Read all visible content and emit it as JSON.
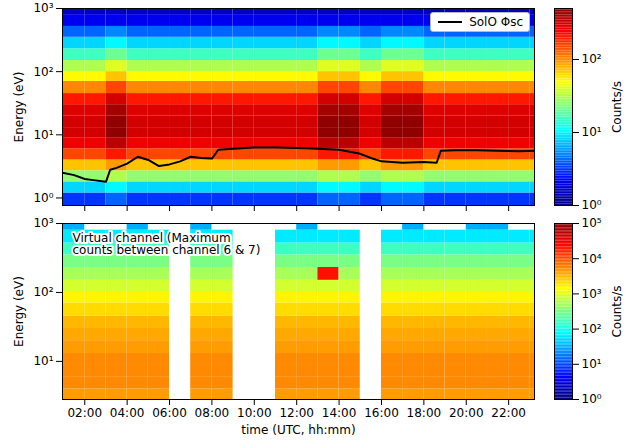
{
  "chart_data": [
    {
      "type": "heatmap",
      "ylabel": "Energy (eV)",
      "log": "y",
      "tick_labels": "y",
      "legend": "upper right",
      "xlim": [
        0.95,
        23.22
      ],
      "xticks": [
        2,
        4,
        6,
        8,
        10,
        12,
        14,
        16,
        18,
        20,
        22
      ],
      "ylim": [
        0.76,
        1000
      ],
      "yticks": [
        {
          "value": 1,
          "label": "10⁰"
        },
        {
          "value": 10,
          "label": "10¹"
        },
        {
          "value": 100,
          "label": "10²"
        },
        {
          "value": 1000,
          "label": "10³"
        }
      ],
      "x_bins": [
        0.95,
        2,
        3,
        4,
        5,
        6,
        7,
        8,
        9,
        10,
        11,
        12,
        13,
        14,
        15,
        16,
        17,
        18,
        19,
        20,
        21,
        22,
        23,
        23.22
      ],
      "y_bins": [
        0.76,
        1.2,
        1.8,
        2.7,
        4,
        6,
        9,
        13,
        20,
        30,
        45,
        70,
        100,
        150,
        230,
        350,
        520,
        800,
        1000
      ],
      "values": [
        [
          3,
          3,
          4,
          3,
          3,
          3,
          3,
          3,
          3,
          3,
          3,
          3,
          4,
          4,
          3,
          4,
          4,
          3,
          3,
          3,
          3,
          3,
          3
        ],
        [
          8,
          8,
          10,
          8,
          8,
          8,
          8,
          8,
          8,
          8,
          8,
          8,
          10,
          10,
          8,
          10,
          10,
          8,
          8,
          8,
          8,
          8,
          8
        ],
        [
          25,
          25,
          30,
          25,
          25,
          25,
          25,
          25,
          25,
          25,
          25,
          25,
          30,
          30,
          25,
          30,
          30,
          25,
          25,
          25,
          25,
          25,
          25
        ],
        [
          70,
          70,
          90,
          70,
          70,
          70,
          70,
          70,
          70,
          70,
          70,
          70,
          90,
          90,
          70,
          90,
          90,
          70,
          70,
          70,
          70,
          70,
          70
        ],
        [
          150,
          150,
          200,
          150,
          150,
          150,
          150,
          150,
          150,
          150,
          150,
          150,
          200,
          200,
          150,
          200,
          200,
          150,
          150,
          150,
          150,
          150,
          150
        ],
        [
          250,
          250,
          350,
          250,
          250,
          250,
          250,
          250,
          250,
          250,
          250,
          250,
          350,
          350,
          250,
          350,
          350,
          250,
          250,
          250,
          250,
          250,
          250
        ],
        [
          300,
          300,
          450,
          300,
          300,
          300,
          300,
          300,
          300,
          300,
          300,
          300,
          450,
          450,
          300,
          450,
          450,
          300,
          300,
          300,
          300,
          300,
          300
        ],
        [
          300,
          300,
          450,
          300,
          300,
          300,
          300,
          300,
          300,
          300,
          300,
          300,
          450,
          450,
          300,
          450,
          450,
          300,
          300,
          300,
          300,
          300,
          300
        ],
        [
          280,
          280,
          400,
          280,
          280,
          280,
          280,
          280,
          280,
          280,
          280,
          280,
          400,
          400,
          280,
          400,
          400,
          280,
          280,
          280,
          280,
          280,
          280
        ],
        [
          200,
          200,
          300,
          200,
          200,
          200,
          200,
          200,
          200,
          200,
          200,
          200,
          300,
          300,
          200,
          300,
          300,
          200,
          200,
          200,
          200,
          200,
          200
        ],
        [
          100,
          100,
          150,
          100,
          100,
          100,
          100,
          100,
          100,
          100,
          100,
          100,
          150,
          150,
          100,
          150,
          150,
          100,
          100,
          100,
          100,
          100,
          100
        ],
        [
          50,
          50,
          70,
          50,
          50,
          50,
          50,
          50,
          50,
          50,
          50,
          50,
          70,
          70,
          50,
          70,
          70,
          50,
          50,
          50,
          50,
          50,
          50
        ],
        [
          30,
          30,
          40,
          30,
          30,
          30,
          30,
          30,
          30,
          30,
          30,
          30,
          40,
          40,
          30,
          40,
          40,
          30,
          30,
          30,
          30,
          30,
          30
        ],
        [
          15,
          15,
          20,
          15,
          15,
          15,
          15,
          15,
          15,
          15,
          15,
          15,
          20,
          20,
          15,
          20,
          20,
          15,
          15,
          15,
          15,
          15,
          15
        ],
        [
          8,
          8,
          10,
          8,
          8,
          8,
          8,
          8,
          8,
          8,
          8,
          8,
          10,
          10,
          8,
          10,
          10,
          8,
          8,
          8,
          8,
          8,
          8
        ],
        [
          4,
          4,
          5,
          4,
          4,
          4,
          4,
          4,
          4,
          4,
          4,
          4,
          5,
          5,
          4,
          5,
          5,
          4,
          4,
          4,
          4,
          4,
          4
        ],
        [
          2,
          2,
          2,
          2,
          2,
          2,
          2,
          2,
          2,
          2,
          2,
          2,
          2,
          2,
          2,
          2,
          2,
          2,
          2,
          2,
          2,
          2,
          2
        ],
        [
          1.5,
          1.5,
          1.5,
          1.5,
          1.5,
          1.5,
          1.5,
          1.5,
          1.5,
          1.5,
          1.5,
          1.5,
          1.5,
          1.5,
          1.5,
          1.5,
          1.5,
          1.5,
          1.5,
          1.5,
          1.5,
          1.5,
          1.5
        ]
      ],
      "colorbar": {
        "label": "Counts/s",
        "lim": [
          1,
          500
        ],
        "ticks": [
          {
            "value": 1,
            "label": "10⁰"
          },
          {
            "value": 10,
            "label": "10¹"
          },
          {
            "value": 100,
            "label": "10²"
          }
        ]
      },
      "series": [
        {
          "name": "SolO Φsc",
          "type": "line",
          "color": "black",
          "x": [
            0.95,
            1.5,
            2.0,
            2.5,
            3.0,
            3.2,
            3.5,
            4.0,
            4.5,
            5.0,
            5.5,
            6.0,
            6.5,
            7.0,
            7.5,
            8.0,
            8.3,
            9.0,
            10.0,
            11.0,
            12.0,
            13.0,
            14.0,
            15.0,
            15.5,
            16.0,
            17.0,
            18.0,
            18.6,
            18.8,
            19.5,
            20.5,
            21.5,
            22.5,
            23.22
          ],
          "values": [
            2.5,
            2.3,
            2.0,
            1.9,
            1.8,
            2.8,
            3.0,
            3.5,
            4.5,
            4.0,
            3.2,
            3.4,
            3.8,
            4.5,
            4.3,
            4.2,
            5.8,
            6.0,
            6.3,
            6.3,
            6.2,
            6.0,
            5.8,
            5.0,
            4.3,
            3.8,
            3.6,
            3.7,
            3.6,
            5.6,
            5.7,
            5.7,
            5.6,
            5.5,
            5.6
          ]
        }
      ]
    },
    {
      "type": "heatmap",
      "xlabel": "time (UTC, hh:mm)",
      "ylabel": "Energy (eV)",
      "log": "y",
      "annotation": "Virtual channel (Maximum\ncounts between channel 6 & 7)",
      "xlim": [
        0.95,
        23.22
      ],
      "xticks": [
        {
          "value": 2,
          "label": "02:00"
        },
        {
          "value": 4,
          "label": "04:00"
        },
        {
          "value": 6,
          "label": "06:00"
        },
        {
          "value": 8,
          "label": "08:00"
        },
        {
          "value": 10,
          "label": "10:00"
        },
        {
          "value": 12,
          "label": "12:00"
        },
        {
          "value": 14,
          "label": "14:00"
        },
        {
          "value": 16,
          "label": "16:00"
        },
        {
          "value": 18,
          "label": "18:00"
        },
        {
          "value": 20,
          "label": "20:00"
        },
        {
          "value": 22,
          "label": "22:00"
        }
      ],
      "ylim": [
        2.8,
        1000
      ],
      "yticks": [
        {
          "value": 10,
          "label": "10¹"
        },
        {
          "value": 100,
          "label": "10²"
        },
        {
          "value": 1000,
          "label": "10³"
        }
      ],
      "x_bins": [
        0.95,
        2,
        3,
        4,
        5,
        6,
        7,
        8,
        9,
        10,
        11,
        12,
        13,
        14,
        15,
        16,
        17,
        18,
        19,
        20,
        21,
        22,
        23,
        23.22
      ],
      "y_bins": [
        2.8,
        4,
        6,
        9,
        13,
        20,
        30,
        45,
        70,
        100,
        150,
        230,
        350,
        520,
        800,
        1000
      ],
      "values": [
        [
          4000,
          4000,
          4000,
          4000,
          4000,
          null,
          4000,
          4000,
          null,
          null,
          4000,
          4000,
          4000,
          4000,
          null,
          4000,
          4000,
          4000,
          4000,
          4000,
          4000,
          4000,
          4000
        ],
        [
          5000,
          5000,
          5000,
          5000,
          5000,
          null,
          5000,
          5000,
          null,
          null,
          5000,
          5000,
          5000,
          5000,
          null,
          5000,
          5000,
          5000,
          5000,
          5000,
          5000,
          5000,
          5000
        ],
        [
          5000,
          5000,
          5000,
          5000,
          5000,
          null,
          5000,
          5000,
          null,
          null,
          5000,
          5000,
          5000,
          5000,
          null,
          5000,
          5000,
          5000,
          5000,
          5000,
          5000,
          5000,
          5000
        ],
        [
          5000,
          5000,
          5000,
          5000,
          5000,
          null,
          5000,
          5000,
          null,
          null,
          5000,
          5000,
          5000,
          5000,
          null,
          5000,
          5000,
          5000,
          5000,
          5000,
          5000,
          5000,
          5000
        ],
        [
          4000,
          4000,
          4000,
          4000,
          4000,
          null,
          4000,
          4000,
          null,
          null,
          4000,
          4000,
          4000,
          4000,
          null,
          4000,
          4000,
          4000,
          4000,
          4000,
          4000,
          4000,
          4000
        ],
        [
          3500,
          3500,
          3500,
          3500,
          3500,
          null,
          3500,
          3500,
          null,
          null,
          3500,
          3500,
          3500,
          3500,
          null,
          3500,
          3500,
          3500,
          3500,
          3500,
          3500,
          3500,
          3500
        ],
        [
          3000,
          3000,
          3000,
          3000,
          3000,
          null,
          3000,
          3000,
          null,
          null,
          3000,
          3000,
          3000,
          3000,
          null,
          3000,
          3000,
          3000,
          3000,
          3000,
          3000,
          3000,
          3000
        ],
        [
          2000,
          2000,
          2000,
          2000,
          2000,
          null,
          2000,
          2000,
          null,
          null,
          2000,
          2000,
          2000,
          2000,
          null,
          2000,
          2000,
          2000,
          2000,
          2000,
          2000,
          2000,
          2000
        ],
        [
          1500,
          1500,
          1500,
          1500,
          1500,
          null,
          1500,
          1500,
          null,
          null,
          1500,
          1500,
          1500,
          1500,
          null,
          1500,
          1500,
          1500,
          1500,
          1500,
          1500,
          1500,
          1500
        ],
        [
          800,
          800,
          800,
          800,
          800,
          null,
          800,
          800,
          null,
          null,
          800,
          800,
          800,
          800,
          null,
          800,
          800,
          800,
          800,
          800,
          800,
          800,
          800
        ],
        [
          500,
          500,
          500,
          500,
          500,
          null,
          500,
          500,
          null,
          null,
          500,
          500,
          20000,
          500,
          null,
          500,
          500,
          500,
          500,
          500,
          500,
          500,
          500
        ],
        [
          300,
          300,
          300,
          300,
          300,
          null,
          300,
          300,
          null,
          null,
          300,
          300,
          300,
          300,
          null,
          300,
          300,
          300,
          300,
          300,
          300,
          300,
          300
        ],
        [
          150,
          150,
          150,
          150,
          150,
          null,
          150,
          150,
          null,
          null,
          150,
          150,
          150,
          150,
          null,
          150,
          150,
          150,
          150,
          150,
          150,
          150,
          150
        ],
        [
          60,
          60,
          60,
          60,
          60,
          null,
          60,
          60,
          null,
          null,
          60,
          60,
          60,
          60,
          null,
          60,
          60,
          60,
          60,
          60,
          60,
          60,
          60
        ],
        [
          30,
          null,
          null,
          30,
          null,
          null,
          30,
          null,
          null,
          null,
          null,
          30,
          null,
          null,
          null,
          null,
          30,
          null,
          null,
          30,
          30,
          null,
          null
        ]
      ],
      "colorbar": {
        "label": "Counts/s",
        "lim": [
          1,
          100000
        ],
        "ticks": [
          {
            "value": 1,
            "label": "10⁰"
          },
          {
            "value": 10,
            "label": "10¹"
          },
          {
            "value": 100,
            "label": "10²"
          },
          {
            "value": 1000,
            "label": "10³"
          },
          {
            "value": 10000,
            "label": "10⁴"
          },
          {
            "value": 100000,
            "label": "10⁵"
          }
        ]
      }
    }
  ]
}
